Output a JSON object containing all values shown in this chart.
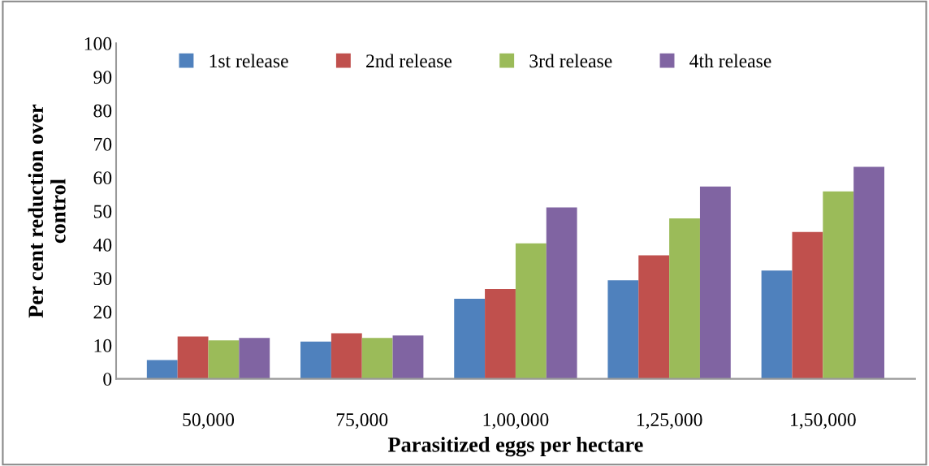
{
  "chart_data": {
    "type": "bar",
    "xlabel": "Parasitized eggs per hectare",
    "ylabel": "Per cent reduction over\ncontrol",
    "categories": [
      "50,000",
      "75,000",
      "1,00,000",
      "1,25,000",
      "1,50,000"
    ],
    "series": [
      {
        "name": "1st release",
        "color": "#4f81bd",
        "values": [
          5.6,
          11.1,
          23.9,
          29.4,
          32.3
        ]
      },
      {
        "name": "2nd release",
        "color": "#c0504d",
        "values": [
          12.6,
          13.6,
          26.8,
          36.8,
          43.8
        ]
      },
      {
        "name": "3rd release",
        "color": "#9bbb59",
        "values": [
          11.5,
          12.2,
          40.4,
          47.8,
          55.9
        ]
      },
      {
        "name": "4th release",
        "color": "#8064a2",
        "values": [
          12.2,
          12.9,
          51.1,
          57.3,
          63.2
        ]
      }
    ],
    "ylim": [
      0,
      100
    ],
    "yticks": [
      0,
      10,
      20,
      30,
      40,
      50,
      60,
      70,
      80,
      90,
      100
    ],
    "grid": false,
    "legend": "top"
  }
}
